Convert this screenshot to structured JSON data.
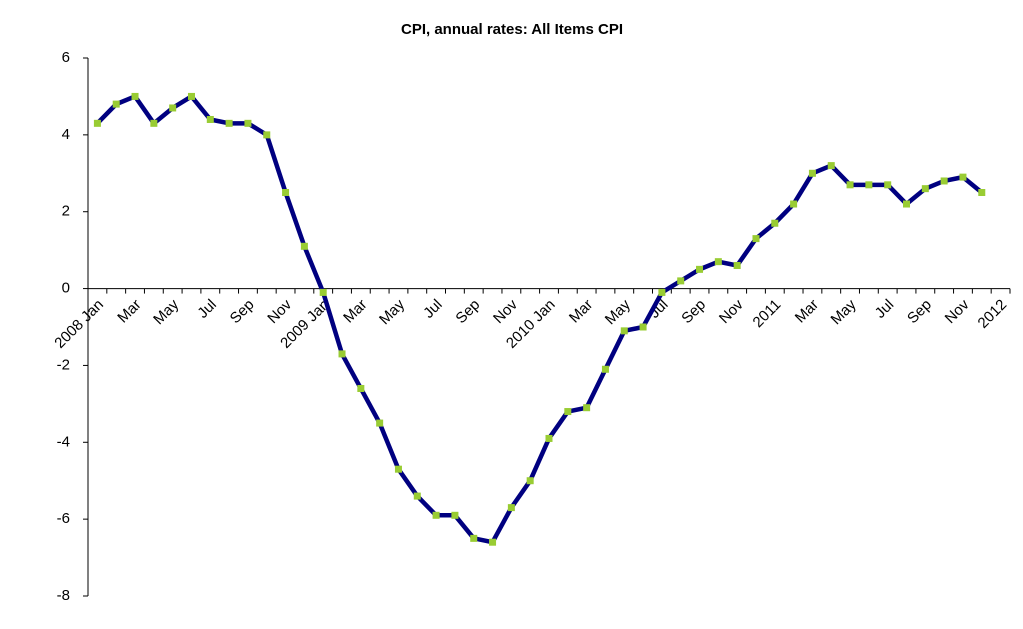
{
  "chart_data": {
    "type": "line",
    "title": "CPI, annual rates: All Items CPI",
    "categories": [
      "2008 Jan",
      null,
      "Mar",
      null,
      "May",
      null,
      "Jul",
      null,
      "Sep",
      null,
      "Nov",
      null,
      "2009 Jan",
      null,
      "Mar",
      null,
      "May",
      null,
      "Jul",
      null,
      "Sep",
      null,
      "Nov",
      null,
      "2010 Jan",
      null,
      "Mar",
      null,
      "May",
      null,
      "Jul",
      null,
      "Sep",
      null,
      "Nov",
      null,
      "2011",
      null,
      "Mar",
      null,
      "May",
      null,
      "Jul",
      null,
      "Sep",
      null,
      "Nov",
      null,
      "2012"
    ],
    "series": [
      {
        "color": "#000080",
        "marker_color": "#99cc33",
        "values": [
          4.3,
          4.8,
          5.0,
          4.3,
          4.7,
          5.0,
          4.4,
          4.3,
          4.3,
          4.0,
          2.5,
          1.1,
          -0.1,
          -1.7,
          -2.6,
          -3.5,
          -4.7,
          -5.4,
          -5.9,
          -5.9,
          -6.5,
          -6.6,
          -5.7,
          -5.0,
          -3.9,
          -3.2,
          -3.1,
          -2.1,
          -1.1,
          -1.0,
          -0.1,
          0.2,
          0.5,
          0.7,
          0.6,
          1.3,
          1.7,
          2.2,
          3.0,
          3.2,
          2.7,
          2.7,
          2.7,
          2.2,
          2.6,
          2.8,
          2.9,
          2.5,
          null
        ]
      }
    ],
    "ylim": [
      -8,
      6
    ],
    "yticks": [
      -8,
      -6,
      -4,
      -2,
      0,
      2,
      4,
      6
    ],
    "grid": false
  }
}
